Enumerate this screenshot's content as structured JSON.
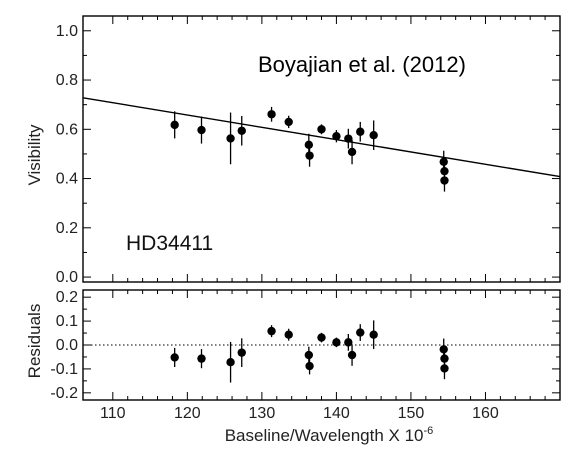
{
  "chart_data": {
    "type": "scatter",
    "title": "",
    "annotation_citation": "Boyajian et al. (2012)",
    "annotation_star": "HD34411",
    "xlabel": "Baseline/Wavelength X 10",
    "xlabel_exponent": "-6",
    "xlim": [
      106,
      170
    ],
    "x_ticks": [
      110,
      120,
      130,
      140,
      150,
      160
    ],
    "top_panel": {
      "ylabel": "Visibility",
      "ylim": [
        -0.02,
        1.06
      ],
      "y_ticks": [
        0.0,
        0.2,
        0.4,
        0.6,
        0.8,
        1.0
      ],
      "y_tick_labels": [
        "0.0",
        "0.2",
        "0.4",
        "0.6",
        "0.8",
        "1.0"
      ],
      "model_line": {
        "x": [
          106,
          170
        ],
        "y": [
          0.728,
          0.408
        ]
      },
      "points": [
        {
          "x": 118.3,
          "y": 0.618,
          "err": 0.055
        },
        {
          "x": 121.9,
          "y": 0.597,
          "err": 0.055
        },
        {
          "x": 125.8,
          "y": 0.563,
          "err": 0.105
        },
        {
          "x": 127.3,
          "y": 0.594,
          "err": 0.06
        },
        {
          "x": 131.3,
          "y": 0.661,
          "err": 0.03
        },
        {
          "x": 133.6,
          "y": 0.63,
          "err": 0.025
        },
        {
          "x": 136.3,
          "y": 0.537,
          "err": 0.045
        },
        {
          "x": 136.4,
          "y": 0.493,
          "err": 0.045
        },
        {
          "x": 138.0,
          "y": 0.6,
          "err": 0.02
        },
        {
          "x": 140.0,
          "y": 0.572,
          "err": 0.025
        },
        {
          "x": 141.6,
          "y": 0.562,
          "err": 0.04
        },
        {
          "x": 142.1,
          "y": 0.508,
          "err": 0.05
        },
        {
          "x": 143.2,
          "y": 0.59,
          "err": 0.04
        },
        {
          "x": 145.0,
          "y": 0.576,
          "err": 0.06
        },
        {
          "x": 154.4,
          "y": 0.468,
          "err": 0.045
        },
        {
          "x": 154.5,
          "y": 0.43,
          "err": 0.045
        },
        {
          "x": 154.5,
          "y": 0.392,
          "err": 0.045
        }
      ]
    },
    "bottom_panel": {
      "ylabel": "Residuals",
      "ylim": [
        -0.23,
        0.23
      ],
      "y_ticks": [
        -0.2,
        -0.1,
        0.0,
        0.1,
        0.2
      ],
      "y_tick_labels": [
        "-0.2",
        "-0.1",
        "0.0",
        "0.1",
        "0.2"
      ],
      "zero_line": "dotted",
      "points": [
        {
          "x": 118.3,
          "y": -0.052,
          "err": 0.04
        },
        {
          "x": 121.9,
          "y": -0.057,
          "err": 0.04
        },
        {
          "x": 125.8,
          "y": -0.072,
          "err": 0.085
        },
        {
          "x": 127.3,
          "y": -0.032,
          "err": 0.06
        },
        {
          "x": 131.3,
          "y": 0.058,
          "err": 0.025
        },
        {
          "x": 133.6,
          "y": 0.043,
          "err": 0.025
        },
        {
          "x": 136.3,
          "y": -0.042,
          "err": 0.035
        },
        {
          "x": 136.4,
          "y": -0.088,
          "err": 0.035
        },
        {
          "x": 138.0,
          "y": 0.031,
          "err": 0.02
        },
        {
          "x": 140.0,
          "y": 0.011,
          "err": 0.02
        },
        {
          "x": 141.6,
          "y": 0.011,
          "err": 0.035
        },
        {
          "x": 142.1,
          "y": -0.042,
          "err": 0.045
        },
        {
          "x": 143.2,
          "y": 0.052,
          "err": 0.035
        },
        {
          "x": 145.0,
          "y": 0.043,
          "err": 0.06
        },
        {
          "x": 154.4,
          "y": -0.018,
          "err": 0.045
        },
        {
          "x": 154.5,
          "y": -0.057,
          "err": 0.045
        },
        {
          "x": 154.5,
          "y": -0.098,
          "err": 0.045
        }
      ]
    },
    "grid": false,
    "colors": {
      "marker": "#000000",
      "line": "#000000",
      "text": "#222222"
    }
  }
}
